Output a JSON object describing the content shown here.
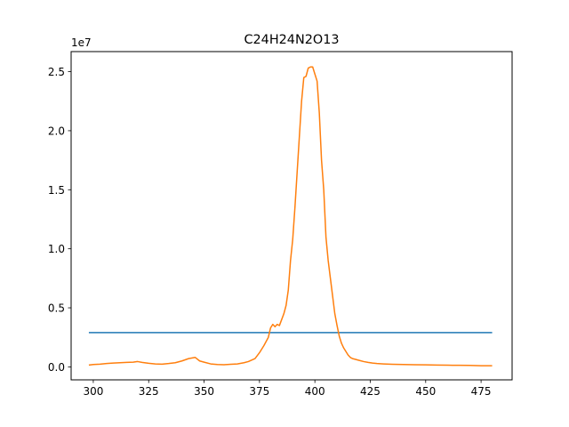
{
  "chart_data": {
    "type": "line",
    "title": "C24H24N2O13",
    "xlabel": "",
    "ylabel": "",
    "offset_text": "1e7",
    "xlim": [
      290,
      489
    ],
    "ylim": [
      -1100000,
      26700000
    ],
    "grid": false,
    "legend": "none",
    "x_ticks": [
      {
        "value": 300,
        "label": "300"
      },
      {
        "value": 325,
        "label": "325"
      },
      {
        "value": 350,
        "label": "350"
      },
      {
        "value": 375,
        "label": "375"
      },
      {
        "value": 400,
        "label": "400"
      },
      {
        "value": 425,
        "label": "425"
      },
      {
        "value": 450,
        "label": "450"
      },
      {
        "value": 475,
        "label": "475"
      }
    ],
    "y_ticks": [
      {
        "value": 0,
        "label": "0.0"
      },
      {
        "value": 5000000,
        "label": "0.5"
      },
      {
        "value": 10000000,
        "label": "1.0"
      },
      {
        "value": 15000000,
        "label": "1.5"
      },
      {
        "value": 20000000,
        "label": "2.0"
      },
      {
        "value": 25000000,
        "label": "2.5"
      }
    ],
    "series": [
      {
        "color": "#1f77b4",
        "x": [
          298,
          480
        ],
        "y": [
          2900000,
          2900000
        ]
      },
      {
        "color": "#ff7f0e",
        "x": [
          298,
          300,
          303,
          306,
          309,
          312,
          315,
          318,
          320,
          322,
          325,
          328,
          331,
          334,
          337,
          340,
          343,
          346,
          348,
          350,
          353,
          356,
          359,
          362,
          365,
          368,
          370,
          373,
          375,
          377,
          379,
          380,
          381,
          382,
          383,
          384,
          385,
          386,
          387,
          388,
          389,
          390,
          391,
          392,
          393,
          394,
          395,
          396,
          397,
          398,
          399,
          400,
          401,
          402,
          403,
          404,
          405,
          406,
          407,
          408,
          409,
          410,
          411,
          412,
          413,
          414,
          415,
          416,
          417,
          418,
          420,
          422,
          424,
          426,
          428,
          431,
          435,
          440,
          445,
          450,
          455,
          460,
          465,
          470,
          475,
          480
        ],
        "y": [
          150000,
          200000,
          230000,
          280000,
          320000,
          350000,
          380000,
          400000,
          450000,
          380000,
          300000,
          250000,
          230000,
          280000,
          350000,
          500000,
          700000,
          800000,
          500000,
          400000,
          250000,
          200000,
          180000,
          220000,
          250000,
          350000,
          450000,
          700000,
          1200000,
          1800000,
          2500000,
          3300000,
          3600000,
          3400000,
          3600000,
          3500000,
          4000000,
          4500000,
          5200000,
          6500000,
          9000000,
          10800000,
          13500000,
          16500000,
          19500000,
          22500000,
          24500000,
          24600000,
          25300000,
          25400000,
          25400000,
          24800000,
          24200000,
          21500000,
          17500000,
          15000000,
          11000000,
          9000000,
          7500000,
          6000000,
          4500000,
          3500000,
          2600000,
          2000000,
          1600000,
          1300000,
          1000000,
          800000,
          700000,
          650000,
          550000,
          450000,
          380000,
          320000,
          280000,
          250000,
          220000,
          200000,
          180000,
          170000,
          150000,
          140000,
          130000,
          120000,
          100000,
          100000
        ]
      }
    ]
  }
}
